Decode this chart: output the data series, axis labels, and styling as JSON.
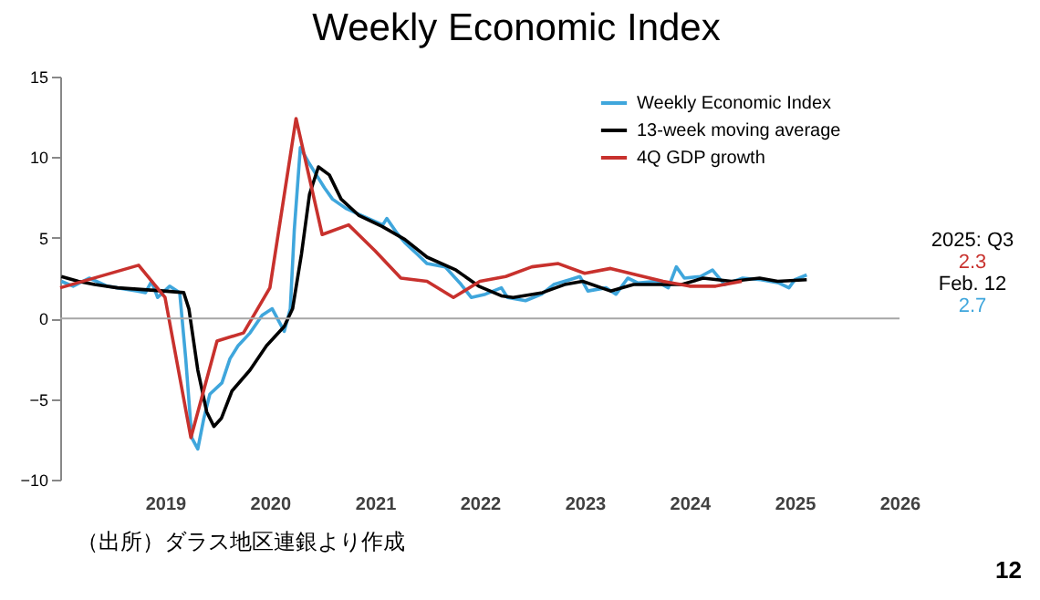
{
  "chart_data": {
    "type": "line",
    "title": "Weekly Economic Index",
    "annotations": [
      "2025: Q3",
      "2.3",
      "Feb. 12",
      "2.7",
      "（出所）ダラス地区連銀より作成",
      "12"
    ],
    "xlim": [
      "2018-01-01",
      "2026-01-01"
    ],
    "xticks": [
      "2019",
      "2020",
      "2021",
      "2022",
      "2023",
      "2024",
      "2025",
      "2026"
    ],
    "ylim": [
      -10,
      15
    ],
    "yticks": [
      -10,
      -5,
      0,
      5,
      10,
      15
    ],
    "ref_lines": [
      {
        "axis": "y",
        "value": 0,
        "color": "#a6a6a6"
      }
    ],
    "legend": "top right",
    "series": [
      {
        "name": "Weekly Economic Index",
        "color": "#3fa6dc",
        "x": [
          "2018-01-05",
          "2018-02-15",
          "2018-04-12",
          "2018-06-14",
          "2018-07-19",
          "2018-09-27",
          "2018-10-25",
          "2018-11-15",
          "2018-12-06",
          "2019-01-17",
          "2019-02-21",
          "2019-03-14",
          "2019-04-04",
          "2019-04-25",
          "2019-05-16",
          "2019-06-06",
          "2019-07-18",
          "2019-08-15",
          "2019-09-12",
          "2019-10-24",
          "2019-12-05",
          "2020-01-09",
          "2020-02-20",
          "2020-03-12",
          "2020-03-26",
          "2020-04-16",
          "2020-05-14",
          "2020-06-11",
          "2020-07-09",
          "2020-08-06",
          "2020-09-24",
          "2020-11-26",
          "2021-01-28",
          "2021-02-11",
          "2021-03-18",
          "2021-04-15",
          "2021-05-27",
          "2021-07-01",
          "2021-09-02",
          "2021-10-28",
          "2021-12-02",
          "2022-01-20",
          "2022-03-17",
          "2022-04-07",
          "2022-06-09",
          "2022-08-04",
          "2022-09-15",
          "2022-11-10",
          "2022-12-15",
          "2023-01-12",
          "2023-03-16",
          "2023-04-20",
          "2023-05-31",
          "2023-07-06",
          "2023-09-07",
          "2023-10-19",
          "2023-11-16",
          "2023-12-14",
          "2024-02-08",
          "2024-03-21",
          "2024-05-02",
          "2024-07-04",
          "2024-09-05",
          "2024-11-07",
          "2024-12-12",
          "2025-01-02",
          "2025-02-12"
        ],
        "values": [
          2.3,
          2.0,
          2.5,
          2.0,
          1.9,
          1.7,
          1.6,
          2.3,
          1.3,
          2.0,
          1.6,
          -2.5,
          -7.4,
          -8.1,
          -6.2,
          -4.7,
          -4.0,
          -2.5,
          -1.7,
          -0.9,
          0.2,
          0.6,
          -0.8,
          0.6,
          5.5,
          10.6,
          9.7,
          8.9,
          8.1,
          7.4,
          6.8,
          6.3,
          5.8,
          6.2,
          5.3,
          4.7,
          4.0,
          3.4,
          3.2,
          2.1,
          1.3,
          1.5,
          1.9,
          1.3,
          1.1,
          1.5,
          2.1,
          2.4,
          2.6,
          1.7,
          1.9,
          1.5,
          2.5,
          2.2,
          2.3,
          1.9,
          3.2,
          2.5,
          2.6,
          3.0,
          2.1,
          2.5,
          2.4,
          2.2,
          1.9,
          2.4,
          2.7
        ]
      },
      {
        "name": "13-week moving average",
        "color": "#000000",
        "x": [
          "2018-01-05",
          "2018-03-05",
          "2018-05-01",
          "2018-07-19",
          "2018-10-08",
          "2018-12-28",
          "2019-03-07",
          "2019-03-25",
          "2019-04-25",
          "2019-05-26",
          "2019-06-20",
          "2019-07-16",
          "2019-08-22",
          "2019-10-24",
          "2019-12-20",
          "2020-02-20",
          "2020-03-20",
          "2020-04-20",
          "2020-05-18",
          "2020-06-18",
          "2020-07-26",
          "2020-09-05",
          "2020-11-05",
          "2021-01-26",
          "2021-04-15",
          "2021-07-01",
          "2021-10-10",
          "2021-12-28",
          "2022-03-17",
          "2022-04-27",
          "2022-08-07",
          "2022-10-23",
          "2022-12-25",
          "2023-04-01",
          "2023-06-20",
          "2023-09-26",
          "2023-12-05",
          "2024-02-17",
          "2024-05-26",
          "2024-09-01",
          "2024-11-03",
          "2025-02-12"
        ],
        "values": [
          2.6,
          2.3,
          2.1,
          1.9,
          1.8,
          1.7,
          1.6,
          0.6,
          -3.2,
          -5.8,
          -6.7,
          -6.2,
          -4.5,
          -3.2,
          -1.7,
          -0.5,
          0.6,
          4.0,
          7.7,
          9.4,
          8.9,
          7.4,
          6.4,
          5.7,
          4.9,
          3.8,
          3.0,
          2.0,
          1.4,
          1.3,
          1.6,
          2.1,
          2.3,
          1.7,
          2.1,
          2.1,
          2.1,
          2.5,
          2.3,
          2.5,
          2.3,
          2.4
        ]
      },
      {
        "name": "4Q GDP growth",
        "color": "#c8312d",
        "x": [
          "2018-01-01",
          "2018-10-01",
          "2019-01-01",
          "2019-04-01",
          "2019-07-01",
          "2019-10-01",
          "2020-01-01",
          "2020-04-01",
          "2020-07-01",
          "2020-10-01",
          "2021-01-01",
          "2021-04-01",
          "2021-07-01",
          "2021-10-01",
          "2022-01-01",
          "2022-04-01",
          "2022-07-01",
          "2022-10-01",
          "2023-01-01",
          "2023-04-01",
          "2023-07-01",
          "2023-10-01",
          "2024-01-01",
          "2024-04-01",
          "2024-07-01"
        ],
        "values": [
          1.9,
          3.3,
          1.3,
          -7.4,
          -1.4,
          -0.9,
          1.9,
          12.4,
          5.2,
          5.8,
          4.2,
          2.5,
          2.3,
          1.3,
          2.3,
          2.6,
          3.2,
          3.4,
          2.8,
          3.1,
          2.7,
          2.3,
          2.0,
          2.0,
          2.3
        ]
      }
    ]
  }
}
